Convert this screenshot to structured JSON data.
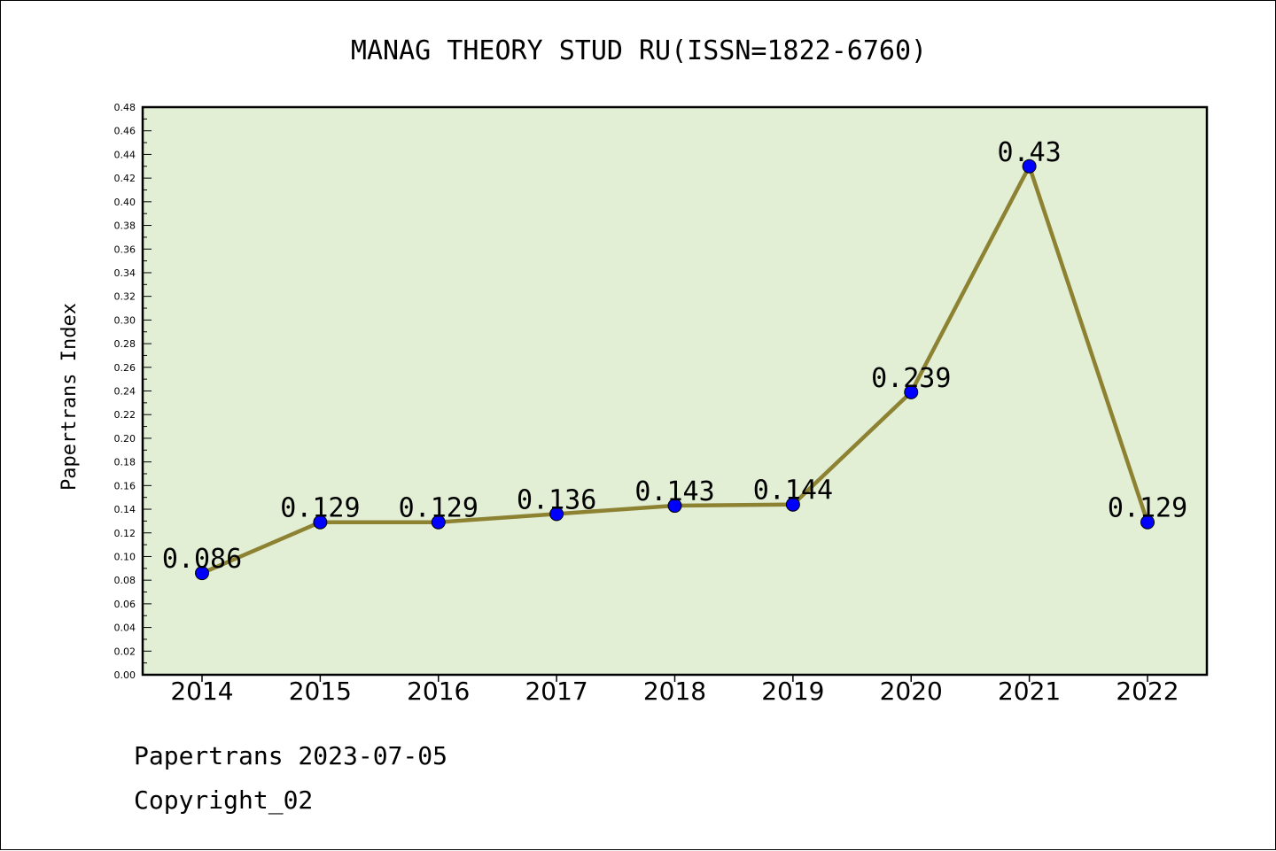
{
  "chart_data": {
    "type": "line",
    "title": "MANAG THEORY STUD RU(ISSN=1822-6760)",
    "ylabel": "Papertrans Index",
    "xlabel": "",
    "categories": [
      "2014",
      "2015",
      "2016",
      "2017",
      "2018",
      "2019",
      "2020",
      "2021",
      "2022"
    ],
    "values": [
      0.086,
      0.129,
      0.129,
      0.136,
      0.143,
      0.144,
      0.239,
      0.43,
      0.129
    ],
    "data_labels": [
      "0.086",
      "0.129",
      "0.129",
      "0.136",
      "0.143",
      "0.144",
      "0.239",
      "0.43",
      "0.129"
    ],
    "ylim": [
      0,
      0.48
    ],
    "yticks": [
      "0.00",
      "0.02",
      "0.04",
      "0.06",
      "0.08",
      "0.10",
      "0.12",
      "0.14",
      "0.16",
      "0.18",
      "0.20",
      "0.22",
      "0.24",
      "0.26",
      "0.28",
      "0.30",
      "0.32",
      "0.34",
      "0.36",
      "0.38",
      "0.40",
      "0.42",
      "0.44",
      "0.46",
      "0.48"
    ],
    "grid": false,
    "colors": {
      "plot_background": "#e2efd5",
      "line": "#8c8232",
      "marker": "#0000ff"
    }
  },
  "footer": {
    "source": "Papertrans 2023-07-05",
    "copyright": "Copyright_02"
  }
}
